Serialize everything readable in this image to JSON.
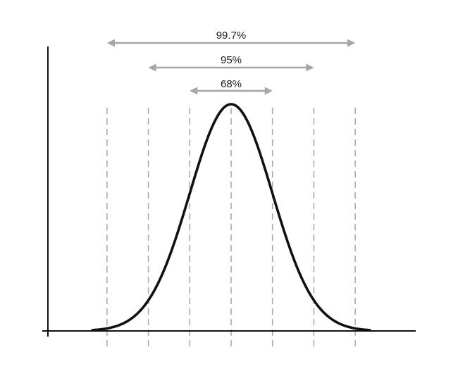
{
  "diagram": {
    "type": "normal-distribution",
    "colors": {
      "curve": "#111111",
      "axes": "#111111",
      "dashed_lines": "#aaaaaa",
      "range_arrows": "#a6a6a6",
      "label_text": "#222222"
    },
    "sigma_positions": [
      -3,
      -2,
      -1,
      0,
      1,
      2,
      3
    ],
    "ranges": [
      {
        "label": "99.7%",
        "sigma": 3
      },
      {
        "label": "95%",
        "sigma": 2
      },
      {
        "label": "68%",
        "sigma": 1
      }
    ]
  }
}
